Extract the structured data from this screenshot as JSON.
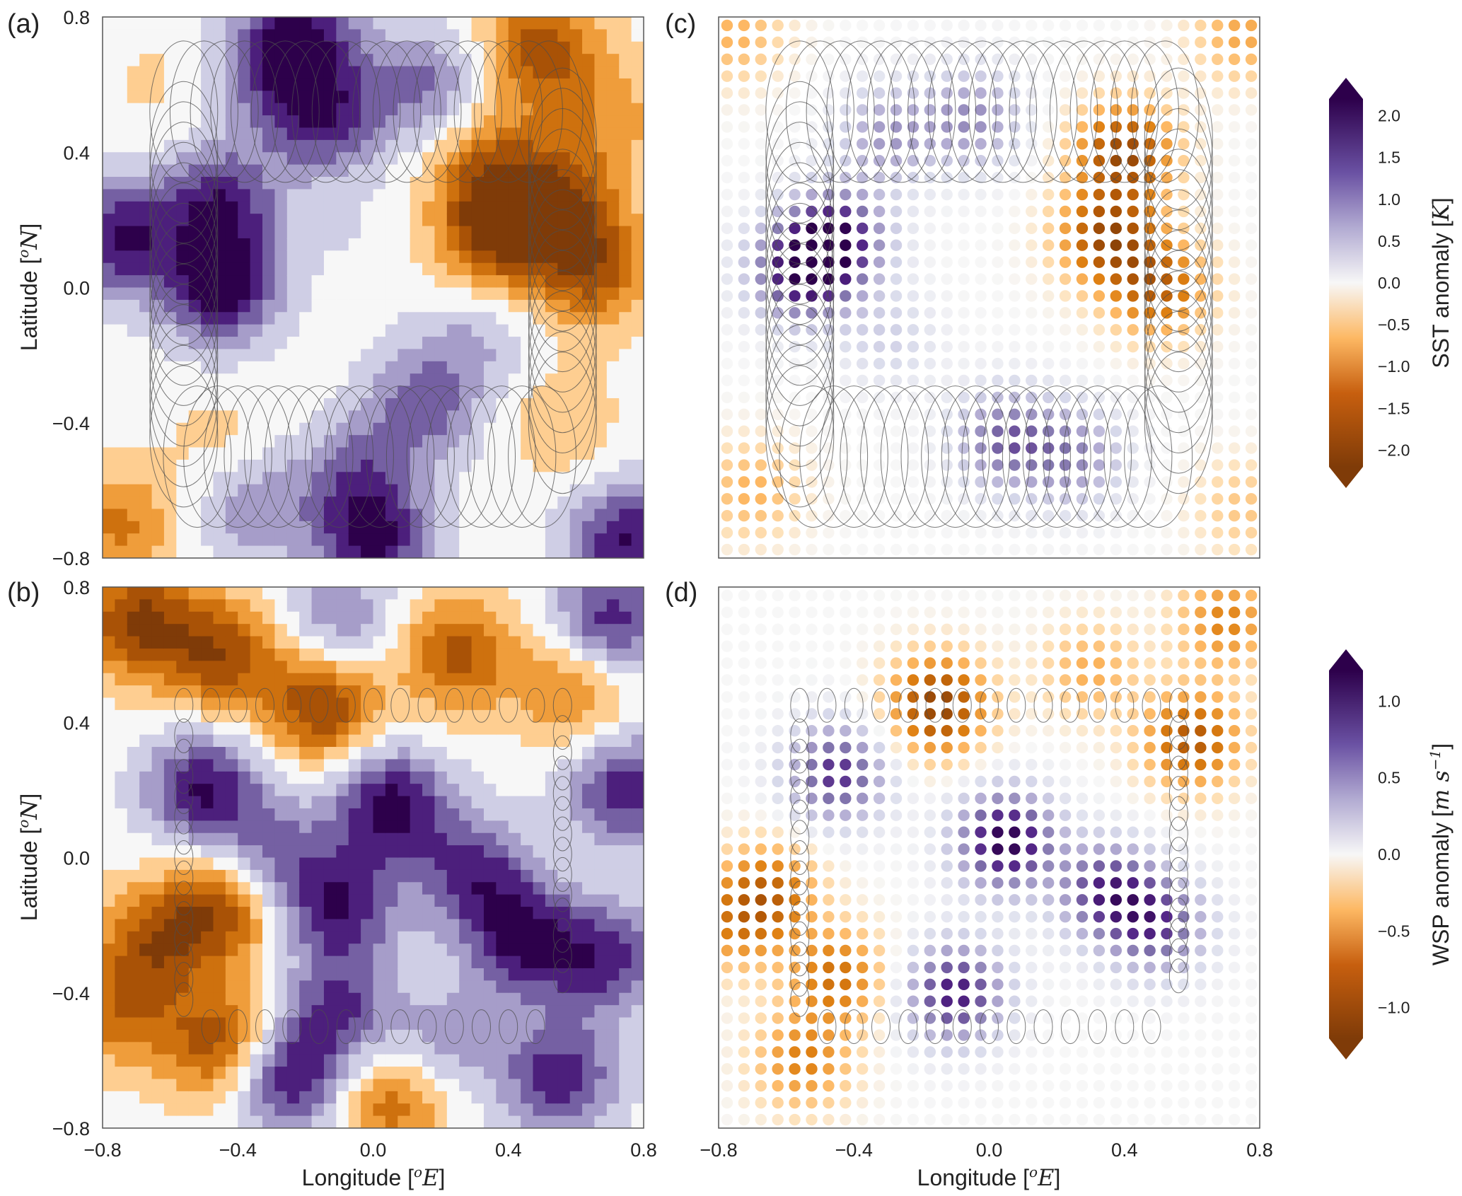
{
  "chart_data": [
    {
      "type": "heatmap",
      "style": "filled-contour",
      "panel_label": "(a)",
      "variable": "SST anomaly",
      "xlim": [
        -0.8,
        0.8
      ],
      "ylim": [
        -0.8,
        0.8
      ],
      "x_ticks": [
        "-0.8",
        "-0.4",
        "0.0",
        "0.4",
        "0.8"
      ],
      "y_ticks": [
        "0.8",
        "0.4",
        "0.0",
        "-0.4",
        "-0.8"
      ],
      "xlabel": "",
      "ylabel": "Latitude [°N]",
      "x_tick_labels_shown": false,
      "overlay": "large-ellipse-track",
      "anomaly_centers": [
        {
          "x": -0.75,
          "y": 0.15,
          "value": 2.0
        },
        {
          "x": -0.45,
          "y": 0.0,
          "value": 2.2
        },
        {
          "x": -0.45,
          "y": 0.25,
          "value": 1.8
        },
        {
          "x": -0.2,
          "y": 0.75,
          "value": 1.6
        },
        {
          "x": -0.15,
          "y": 0.5,
          "value": 1.7
        },
        {
          "x": -0.3,
          "y": 0.65,
          "value": 1.2
        },
        {
          "x": 0.15,
          "y": 0.6,
          "value": 1.2
        },
        {
          "x": 0.5,
          "y": 0.7,
          "value": -1.8
        },
        {
          "x": 0.35,
          "y": 0.35,
          "value": -1.4
        },
        {
          "x": 0.35,
          "y": 0.15,
          "value": -1.9
        },
        {
          "x": 0.55,
          "y": 0.25,
          "value": -1.7
        },
        {
          "x": 0.65,
          "y": 0.05,
          "value": -1.7
        },
        {
          "x": 0.55,
          "y": -0.4,
          "value": -0.6
        },
        {
          "x": 0.15,
          "y": -0.35,
          "value": 1.3
        },
        {
          "x": -0.05,
          "y": -0.55,
          "value": 1.1
        },
        {
          "x": 0.0,
          "y": -0.75,
          "value": 2.0
        },
        {
          "x": 0.75,
          "y": -0.75,
          "value": 2.0
        },
        {
          "x": -0.75,
          "y": -0.7,
          "value": -1.2
        },
        {
          "x": -0.45,
          "y": -0.45,
          "value": -0.4
        },
        {
          "x": -0.05,
          "y": 0.15,
          "value": 0.2
        },
        {
          "x": 0.7,
          "y": 0.5,
          "value": -0.8
        },
        {
          "x": -0.35,
          "y": -0.65,
          "value": 1.0
        },
        {
          "x": 0.3,
          "y": -0.15,
          "value": 0.7
        },
        {
          "x": -0.65,
          "y": 0.6,
          "value": -0.3
        }
      ]
    },
    {
      "type": "heatmap",
      "style": "filled-contour",
      "panel_label": "(b)",
      "variable": "WSP anomaly",
      "xlim": [
        -0.8,
        0.8
      ],
      "ylim": [
        -0.8,
        0.8
      ],
      "x_ticks": [
        "-0.8",
        "-0.4",
        "0.0",
        "0.4",
        "0.8"
      ],
      "y_ticks": [
        "0.8",
        "0.4",
        "0.0",
        "-0.4",
        "-0.8"
      ],
      "xlabel": "Longitude [°E]",
      "ylabel": "Latitude [°N]",
      "overlay": "small-ellipse-track",
      "anomaly_centers": [
        {
          "x": -0.7,
          "y": 0.7,
          "value": -1.1
        },
        {
          "x": -0.45,
          "y": 0.6,
          "value": -1.0
        },
        {
          "x": -0.15,
          "y": 0.45,
          "value": -1.1
        },
        {
          "x": 0.25,
          "y": 0.6,
          "value": -0.9
        },
        {
          "x": 0.6,
          "y": 0.5,
          "value": -0.7
        },
        {
          "x": -0.1,
          "y": 0.7,
          "value": 0.6
        },
        {
          "x": 0.7,
          "y": 0.7,
          "value": 1.0
        },
        {
          "x": -0.5,
          "y": 0.2,
          "value": 1.1
        },
        {
          "x": 0.05,
          "y": 0.15,
          "value": 1.2
        },
        {
          "x": -0.1,
          "y": -0.15,
          "value": 1.0
        },
        {
          "x": 0.3,
          "y": -0.05,
          "value": 0.9
        },
        {
          "x": 0.45,
          "y": -0.25,
          "value": 1.1
        },
        {
          "x": 0.75,
          "y": 0.2,
          "value": 1.0
        },
        {
          "x": 0.7,
          "y": -0.3,
          "value": 0.9
        },
        {
          "x": -0.45,
          "y": -0.15,
          "value": -1.0
        },
        {
          "x": -0.65,
          "y": -0.25,
          "value": -0.8
        },
        {
          "x": -0.45,
          "y": -0.55,
          "value": -1.0
        },
        {
          "x": -0.75,
          "y": -0.45,
          "value": -0.7
        },
        {
          "x": -0.25,
          "y": -0.65,
          "value": 1.1
        },
        {
          "x": 0.05,
          "y": -0.72,
          "value": -0.8
        },
        {
          "x": 0.55,
          "y": -0.65,
          "value": 1.0
        },
        {
          "x": -0.1,
          "y": -0.45,
          "value": 0.8
        },
        {
          "x": 0.2,
          "y": -0.55,
          "value": 0.5
        },
        {
          "x": -0.3,
          "y": 0.0,
          "value": 0.7
        }
      ]
    },
    {
      "type": "scatter",
      "style": "dot-grid",
      "panel_label": "(c)",
      "variable": "SST anomaly",
      "xlim": [
        -0.8,
        0.8
      ],
      "ylim": [
        -0.8,
        0.8
      ],
      "grid_spacing": 0.05,
      "x_tick_labels_shown": false,
      "y_tick_labels_shown": false,
      "overlay": "large-ellipse-track",
      "anomaly_centers": [
        {
          "x": -0.55,
          "y": 0.05,
          "value": 2.1
        },
        {
          "x": -0.45,
          "y": 0.15,
          "value": 1.8
        },
        {
          "x": -0.3,
          "y": 0.45,
          "value": 0.9
        },
        {
          "x": -0.05,
          "y": 0.5,
          "value": 1.0
        },
        {
          "x": 0.4,
          "y": 0.4,
          "value": -1.9
        },
        {
          "x": 0.35,
          "y": 0.15,
          "value": -1.8
        },
        {
          "x": 0.5,
          "y": 0.0,
          "value": -1.5
        },
        {
          "x": 0.05,
          "y": -0.45,
          "value": 1.3
        },
        {
          "x": 0.25,
          "y": -0.5,
          "value": 1.0
        },
        {
          "x": -0.7,
          "y": -0.6,
          "value": -0.7
        },
        {
          "x": 0.75,
          "y": -0.65,
          "value": -0.5
        },
        {
          "x": -0.75,
          "y": 0.75,
          "value": -0.7
        },
        {
          "x": 0.75,
          "y": 0.75,
          "value": -0.8
        },
        {
          "x": -0.3,
          "y": -0.15,
          "value": 0.4
        }
      ]
    },
    {
      "type": "scatter",
      "style": "dot-grid",
      "panel_label": "(d)",
      "variable": "WSP anomaly",
      "xlim": [
        -0.8,
        0.8
      ],
      "ylim": [
        -0.8,
        0.8
      ],
      "grid_spacing": 0.05,
      "x_ticks": [
        "-0.8",
        "-0.4",
        "0.0",
        "0.4",
        "0.8"
      ],
      "xlabel": "Longitude [°E]",
      "y_tick_labels_shown": false,
      "overlay": "small-ellipse-track",
      "anomaly_centers": [
        {
          "x": -0.15,
          "y": 0.45,
          "value": -1.1
        },
        {
          "x": 0.6,
          "y": 0.35,
          "value": -0.9
        },
        {
          "x": 0.3,
          "y": 0.55,
          "value": -0.4
        },
        {
          "x": -0.45,
          "y": 0.25,
          "value": 0.9
        },
        {
          "x": 0.05,
          "y": 0.05,
          "value": 1.2
        },
        {
          "x": 0.35,
          "y": -0.1,
          "value": 0.9
        },
        {
          "x": 0.5,
          "y": -0.2,
          "value": 0.8
        },
        {
          "x": -0.1,
          "y": -0.4,
          "value": 1.0
        },
        {
          "x": -0.65,
          "y": -0.1,
          "value": -0.7
        },
        {
          "x": -0.45,
          "y": -0.35,
          "value": -0.7
        },
        {
          "x": -0.55,
          "y": -0.6,
          "value": -0.6
        },
        {
          "x": 0.7,
          "y": 0.7,
          "value": -0.6
        },
        {
          "x": -0.75,
          "y": -0.2,
          "value": -0.5
        }
      ]
    }
  ],
  "colorbars": [
    {
      "label": "SST anomaly",
      "unit": "K",
      "range": [
        -2.2,
        2.2
      ],
      "tick_values": [
        2.0,
        1.5,
        1.0,
        0.5,
        0.0,
        -0.5,
        -1.0,
        -1.5,
        -2.0
      ],
      "tick_labels": [
        "2.0",
        "1.5",
        "1.0",
        "0.5",
        "0.0",
        "−0.5",
        "−1.0",
        "−1.5",
        "−2.0"
      ],
      "extend": "both"
    },
    {
      "label": "WSP anomaly",
      "unit": "m s",
      "unit_exponent": "−1",
      "range": [
        -1.2,
        1.2
      ],
      "tick_values": [
        1.0,
        0.5,
        0.0,
        -0.5,
        -1.0
      ],
      "tick_labels": [
        "1.0",
        "0.5",
        "0.0",
        "−0.5",
        "−1.0"
      ],
      "extend": "both"
    }
  ],
  "panel_labels": [
    "(a)",
    "(b)",
    "(c)",
    "(d)"
  ],
  "axis_tick_labels": {
    "x": [
      "−0.8",
      "−0.4",
      "0.0",
      "0.4",
      "0.8"
    ],
    "y": [
      "0.8",
      "0.4",
      "0.0",
      "−0.4",
      "−0.8"
    ]
  },
  "axis_text": {
    "x_prefix": "Longitude [",
    "x_sup": "o",
    "x_unit": "E",
    "x_suffix": "]",
    "y_prefix": "Latitude [",
    "y_sup": "o",
    "y_unit": "N",
    "y_suffix": "]"
  },
  "palette": {
    "positive_max": "#2d004b",
    "positive_mid": "#8073ac",
    "neutral": "#f7f7f7",
    "negative_mid": "#fdb863",
    "negative_max": "#7f3b08"
  }
}
